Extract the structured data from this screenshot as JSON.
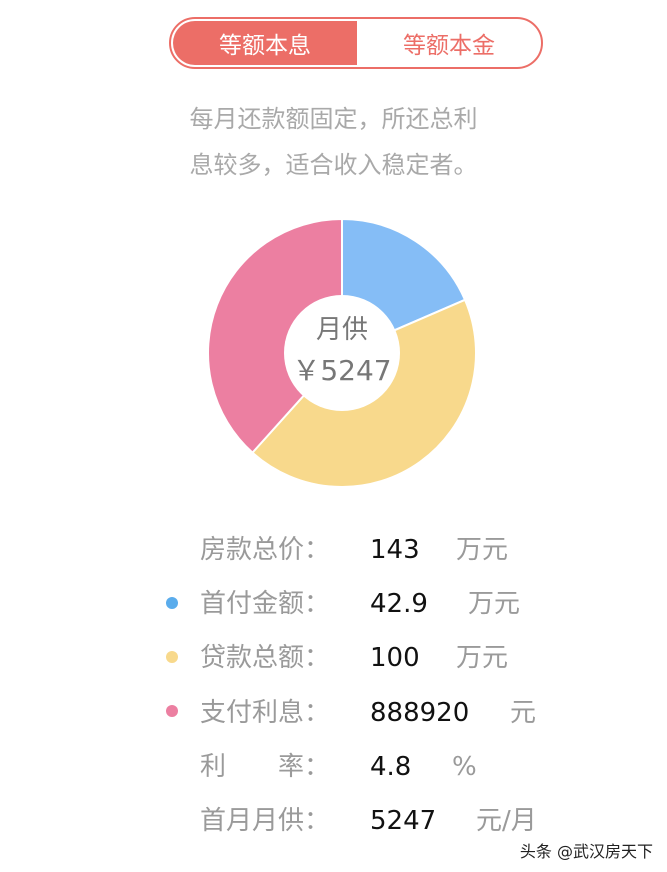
{
  "tabs": [
    {
      "label": "等额本息",
      "active": true
    },
    {
      "label": "等额本金",
      "active": false
    }
  ],
  "description": {
    "line1": "每月还款额固定，所还总利",
    "line2": "息较多，适合收入稳定者。"
  },
  "chart_data": {
    "type": "pie",
    "center_label": "月供",
    "center_value": "￥5247",
    "slices": [
      {
        "name": "首付金额",
        "value": 42.9,
        "color": "#85bdf6"
      },
      {
        "name": "贷款总额",
        "value": 100,
        "color": "#f8d98c"
      },
      {
        "name": "支付利息",
        "value": 88.892,
        "color": "#ec7fa1"
      }
    ]
  },
  "rows": [
    {
      "label": "房款总价：",
      "value": "143",
      "unit": "万元",
      "dot": null
    },
    {
      "label": "首付金额：",
      "value": "42.9",
      "unit": "万元",
      "dot": "#5aacec"
    },
    {
      "label": "贷款总额：",
      "value": "100",
      "unit": "万元",
      "dot": "#f8d98c"
    },
    {
      "label": "支付利息：",
      "value": "888920",
      "unit": "元",
      "dot": "#ec7fa1"
    },
    {
      "label": "利　　率：",
      "value": "4.8",
      "unit": "%",
      "dot": null
    },
    {
      "label": "首月月供：",
      "value": "5247",
      "unit": "元/月",
      "dot": null
    }
  ],
  "watermark": "头条 @武汉房天下"
}
